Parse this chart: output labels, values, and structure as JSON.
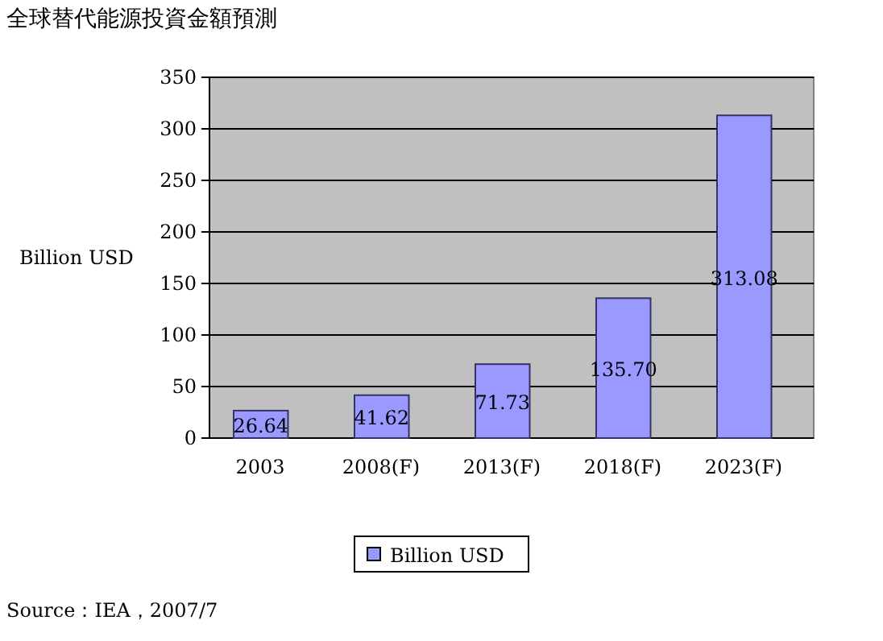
{
  "chart_data": {
    "type": "bar",
    "title": "全球替代能源投資金額預測",
    "ylabel": "Billion USD",
    "categories": [
      "2003",
      "2008(F)",
      "2013(F)",
      "2018(F)",
      "2023(F)"
    ],
    "series": [
      {
        "name": "Billion USD",
        "color": "#9999ff",
        "values": [
          26.64,
          41.62,
          71.73,
          135.7,
          313.08
        ]
      }
    ],
    "value_labels": [
      "26.64",
      "41.62",
      "71.73",
      "135.70",
      "313.08"
    ],
    "ylim": [
      0,
      350
    ],
    "yticks": [
      0,
      50,
      100,
      150,
      200,
      250,
      300,
      350
    ],
    "grid": "y",
    "legend": "bottom",
    "annotations": [
      "Source：IEA，2007/7"
    ]
  }
}
